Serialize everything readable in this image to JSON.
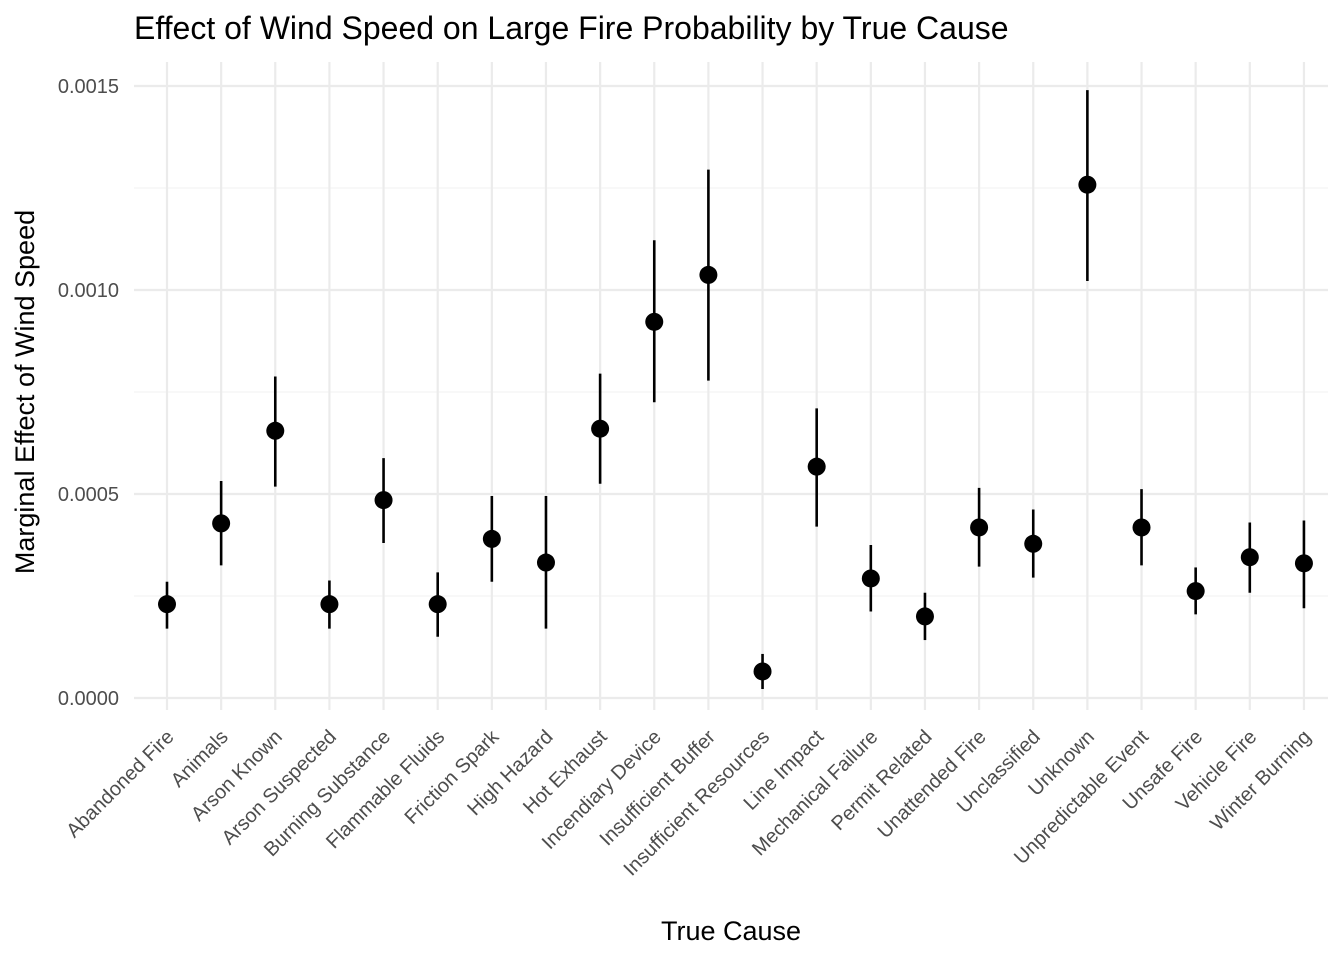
{
  "chart_data": {
    "type": "pointrange",
    "title": "Effect of Wind Speed on Large Fire Probability by True Cause",
    "xlabel": "True Cause",
    "ylabel": "Marginal Effect of Wind Speed",
    "ylim": [
      -3e-05,
      0.00153
    ],
    "yticks": [
      0.0,
      0.0005,
      0.001,
      0.0015
    ],
    "ytick_labels": [
      "0.0000",
      "0.0005",
      "0.0010",
      "0.0015"
    ],
    "grid": true,
    "categories": [
      "Abandoned Fire",
      "Animals",
      "Arson Known",
      "Arson Suspected",
      "Burning Substance",
      "Flammable Fluids",
      "Friction Spark",
      "High Hazard",
      "Hot Exhaust",
      "Incendiary Device",
      "Insufficient Buffer",
      "Insufficient Resources",
      "Line Impact",
      "Mechanical Failure",
      "Permit Related",
      "Unattended Fire",
      "Unclassified",
      "Unknown",
      "Unpredictable Event",
      "Unsafe Fire",
      "Vehicle Fire",
      "Winter Burning"
    ],
    "estimate": [
      0.00023,
      0.000428,
      0.000655,
      0.00023,
      0.000485,
      0.00023,
      0.00039,
      0.000332,
      0.00066,
      0.000922,
      0.001037,
      6.5e-05,
      0.000567,
      0.000293,
      0.0002,
      0.000418,
      0.000378,
      0.001258,
      0.000418,
      0.000262,
      0.000345,
      0.00033
    ],
    "lower": [
      0.00017,
      0.000325,
      0.000518,
      0.00017,
      0.00038,
      0.00015,
      0.000285,
      0.00017,
      0.000525,
      0.000725,
      0.000778,
      2.2e-05,
      0.00042,
      0.000212,
      0.000142,
      0.000322,
      0.000295,
      0.001022,
      0.000325,
      0.000205,
      0.000258,
      0.00022
    ],
    "upper": [
      0.000285,
      0.000532,
      0.000788,
      0.000288,
      0.000588,
      0.000308,
      0.000495,
      0.000495,
      0.000795,
      0.001122,
      0.001295,
      0.000108,
      0.00071,
      0.000375,
      0.000258,
      0.000515,
      0.000462,
      0.00149,
      0.000512,
      0.00032,
      0.00043,
      0.000435
    ],
    "point_color": "#000000",
    "grid_color": "#ebebeb"
  }
}
